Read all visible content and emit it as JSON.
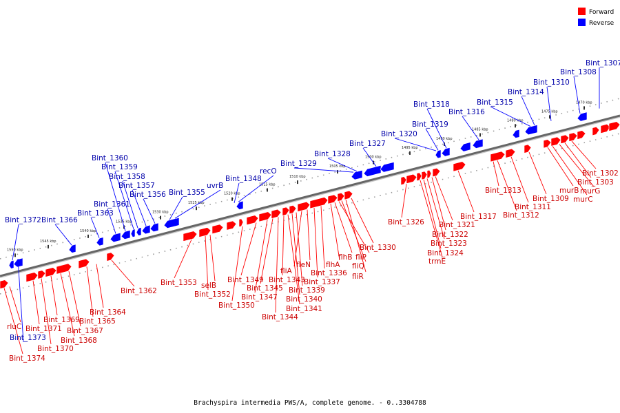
{
  "caption": "Brachyspira intermedia PWS/A, complete genome. - 0..3304788",
  "legend": [
    {
      "label": "Forward",
      "color": "#ff0000"
    },
    {
      "label": "Reverse",
      "color": "#0000ff"
    }
  ],
  "colors": {
    "forward": "#ff0000",
    "forward_label": "#cc0000",
    "reverse": "#0000ff",
    "reverse_label": "#0000aa",
    "backbone": "#666666"
  },
  "ticks": [
    "1550 kbp",
    "1545 kbp",
    "1540 kbp",
    "1535 kbp",
    "1530 kbp",
    "1525 kbp",
    "1520 kbp",
    "1515 kbp",
    "1510 kbp",
    "1505 kbp",
    "1500 kbp",
    "1495 kbp",
    "1490 kbp",
    "1485 kbp",
    "1480 kbp",
    "1475 kbp",
    "1470 kbp"
  ],
  "reverse_genes": [
    "Bint_1307",
    "Bint_1308",
    "Bint_1310",
    "Bint_1314",
    "Bint_1315",
    "Bint_1316",
    "Bint_1318",
    "Bint_1319",
    "Bint_1320",
    "Bint_1327",
    "Bint_1328",
    "Bint_1329",
    "recO",
    "Bint_1348",
    "uvrB",
    "Bint_1355",
    "Bint_1356",
    "Bint_1357",
    "Bint_1358",
    "Bint_1359",
    "Bint_1360",
    "Bint_1361",
    "Bint_1363",
    "Bint_1366",
    "Bint_1372",
    "Bint_1373"
  ],
  "forward_genes": [
    "Bint_1302",
    "Bint_1303",
    "murG",
    "murC",
    "murB",
    "Bint_1309",
    "Bint_1311",
    "Bint_1312",
    "Bint_1313",
    "Bint_1317",
    "Bint_1321",
    "Bint_1322",
    "Bint_1323",
    "Bint_1324",
    "trmE",
    "Bint_1326",
    "Bint_1330",
    "fliR",
    "fliQ",
    "fliP",
    "flhB",
    "flhA",
    "Bint_1336",
    "Bint_1337",
    "fleN",
    "fliA",
    "Bint_1339",
    "Bint_1340",
    "Bint_1341",
    "Bint_1343",
    "Bint_1344",
    "Bint_1345",
    "Bint_1347",
    "Bint_1349",
    "Bint_1350",
    "Bint_1352",
    "selB",
    "Bint_1353",
    "Bint_1362",
    "Bint_1364",
    "Bint_1365",
    "Bint_1367",
    "Bint_1368",
    "Bint_1369",
    "Bint_1370",
    "Bint_1371",
    "rluC",
    "Bint_1374"
  ]
}
